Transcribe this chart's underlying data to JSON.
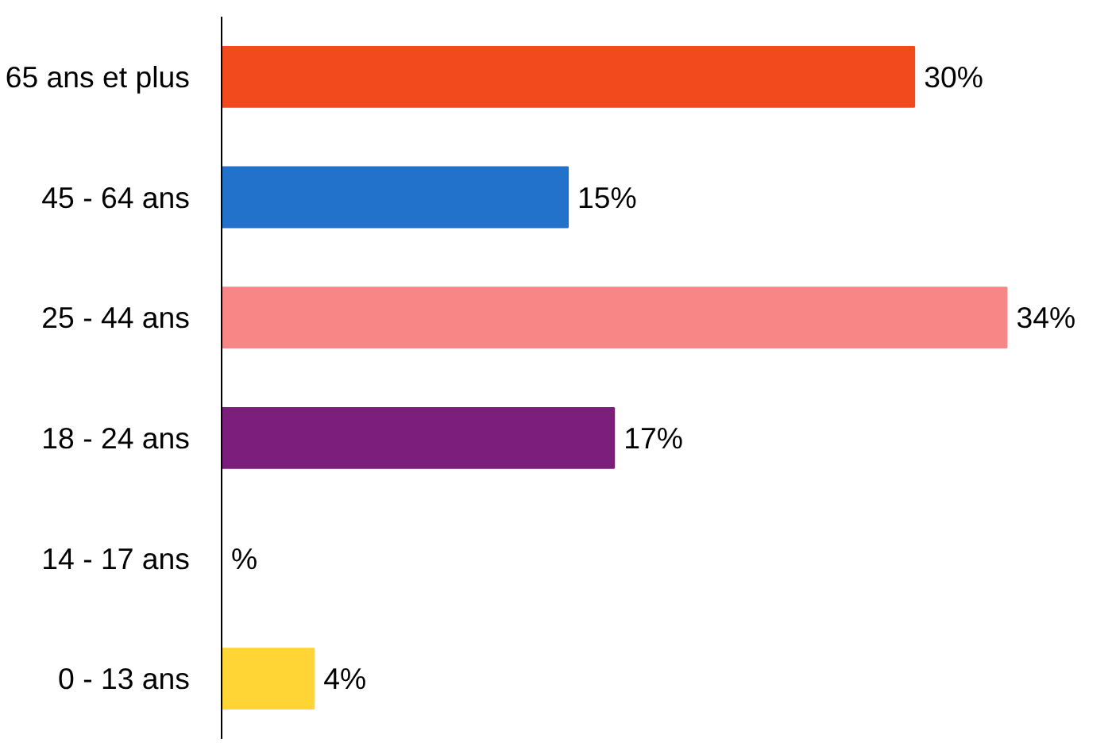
{
  "chart_data": {
    "type": "bar",
    "orientation": "horizontal",
    "categories": [
      "65 ans et plus",
      "45 - 64 ans",
      "25 - 44 ans",
      "18 - 24 ans",
      "14 - 17 ans",
      "0 - 13 ans"
    ],
    "values": [
      30,
      15,
      34,
      17,
      null,
      4
    ],
    "colors": [
      "#f24a1c",
      "#2272cc",
      "#f98686",
      "#7c1e7c",
      null,
      "#ffd535"
    ],
    "value_labels": [
      "30%",
      "15%",
      "34%",
      "17%",
      "%",
      "4%"
    ],
    "grid": false
  }
}
